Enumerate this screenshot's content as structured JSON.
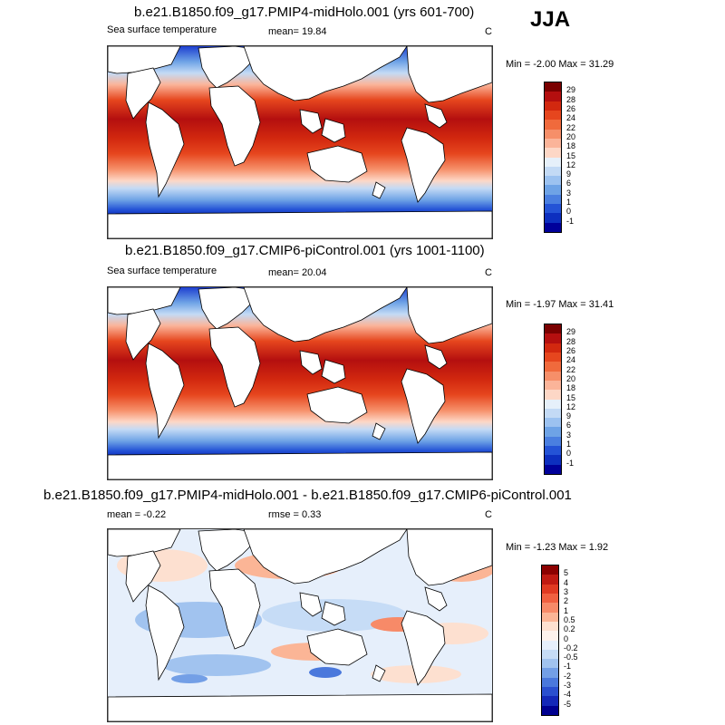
{
  "season": "JJA",
  "panels": [
    {
      "title": "b.e21.B1850.f09_g17.PMIP4-midHolo.001 (yrs 601-700)",
      "left_label": "Sea surface temperature",
      "center_label": "mean=  19.84",
      "units": "C",
      "minmax": "Min =  -2.00 Max =  31.29",
      "colorbar_labels": [
        "29",
        "28",
        "26",
        "24",
        "22",
        "20",
        "18",
        "15",
        "12",
        "9",
        "6",
        "3",
        "1",
        "0",
        "-1"
      ],
      "colorbar_colors": [
        "#7a0000",
        "#b40f0f",
        "#d2280f",
        "#e6461e",
        "#f06a3c",
        "#f68f69",
        "#fbb499",
        "#fdd7c6",
        "#e6f0fa",
        "#c3daf5",
        "#9cc2f0",
        "#6ea3e6",
        "#4a7fe0",
        "#2453d6",
        "#0d2fbf",
        "#00009a"
      ]
    },
    {
      "title": "b.e21.B1850.f09_g17.CMIP6-piControl.001 (yrs 1001-1100)",
      "left_label": "Sea surface temperature",
      "center_label": "mean=  20.04",
      "units": "C",
      "minmax": "Min =  -1.97 Max =  31.41",
      "colorbar_labels": [
        "29",
        "28",
        "26",
        "24",
        "22",
        "20",
        "18",
        "15",
        "12",
        "9",
        "6",
        "3",
        "1",
        "0",
        "-1"
      ],
      "colorbar_colors": [
        "#7a0000",
        "#b40f0f",
        "#d2280f",
        "#e6461e",
        "#f06a3c",
        "#f68f69",
        "#fbb499",
        "#fdd7c6",
        "#e6f0fa",
        "#c3daf5",
        "#9cc2f0",
        "#6ea3e6",
        "#4a7fe0",
        "#2453d6",
        "#0d2fbf",
        "#00009a"
      ]
    },
    {
      "title": "b.e21.B1850.f09_g17.PMIP4-midHolo.001 - b.e21.B1850.f09_g17.CMIP6-piControl.001",
      "left_label": "mean =  -0.22",
      "center_label": "rmse =   0.33",
      "units": "C",
      "minmax": "Min =  -1.23 Max =   1.92",
      "colorbar_labels": [
        "5",
        "4",
        "3",
        "2",
        "1",
        "0.5",
        "0.2",
        "0",
        "-0.2",
        "-0.5",
        "-1",
        "-2",
        "-3",
        "-4",
        "-5"
      ],
      "colorbar_colors": [
        "#8c0000",
        "#c01a12",
        "#e03a22",
        "#f06040",
        "#f78a68",
        "#fbb596",
        "#fde0d0",
        "#fdf2ec",
        "#e6effb",
        "#c6dcf6",
        "#a1c3ef",
        "#739fe6",
        "#4a78dc",
        "#2a4fcf",
        "#1428b8",
        "#000090"
      ]
    }
  ]
}
